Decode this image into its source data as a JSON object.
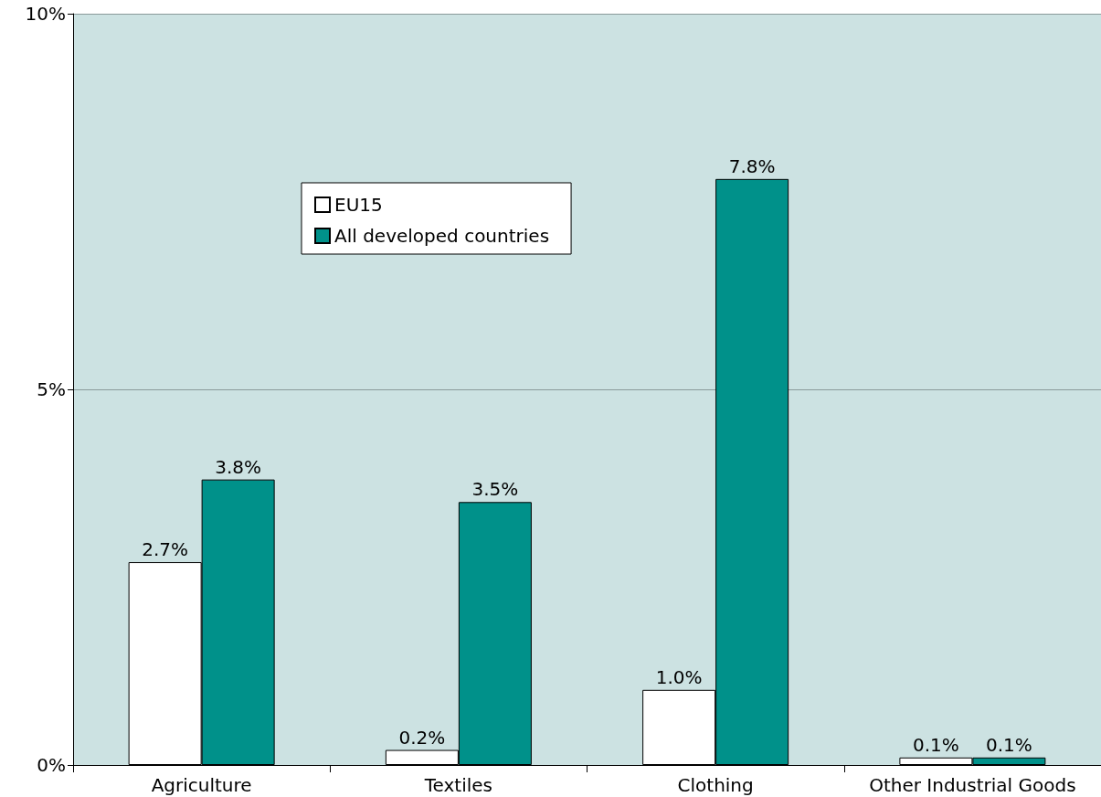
{
  "chart_data": {
    "type": "bar",
    "categories": [
      "Agriculture",
      "Textiles",
      "Clothing",
      "Other Industrial Goods"
    ],
    "series": [
      {
        "name": "EU15",
        "color": "#ffffff",
        "values": [
          2.7,
          0.2,
          1.0,
          0.1
        ]
      },
      {
        "name": "All developed countries",
        "color": "#00918a",
        "values": [
          3.8,
          3.5,
          7.8,
          0.1
        ]
      }
    ],
    "ylim": [
      0,
      10
    ],
    "yticks": [
      {
        "value": 0,
        "label": "0%"
      },
      {
        "value": 5,
        "label": "5%"
      },
      {
        "value": 10,
        "label": "10%"
      }
    ],
    "grid": "y",
    "legend": "top left",
    "value_labels": [
      [
        "2.7%",
        "0.2%",
        "1.0%",
        "0.1%"
      ],
      [
        "3.8%",
        "3.5%",
        "7.8%",
        "0.1%"
      ]
    ]
  }
}
